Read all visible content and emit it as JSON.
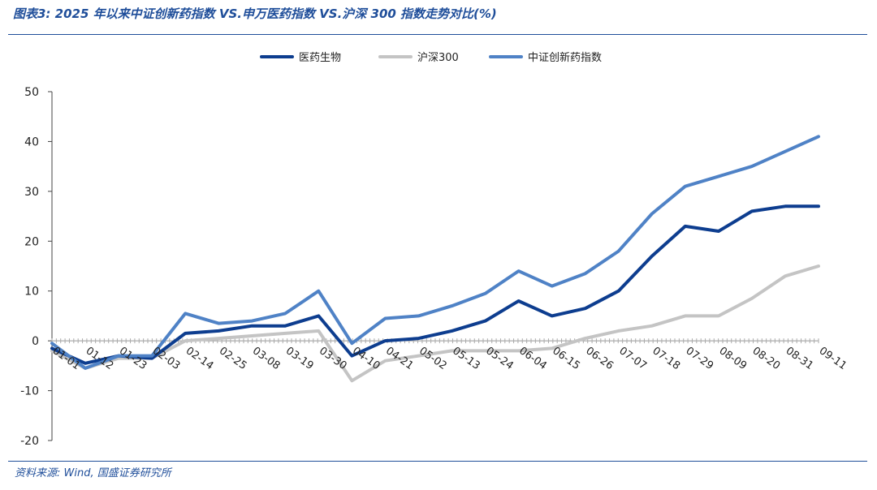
{
  "header": {
    "title": "图表3: 2025 年以来中证创新药指数 VS.申万医药指数 VS.沪深 300 指数走势对比(%)"
  },
  "footer": {
    "source": "资料来源: Wind, 国盛证券研究所"
  },
  "chart_data": {
    "type": "line",
    "title": "图表3: 2025 年以来中证创新药指数 VS.申万医药指数 VS.沪深 300 指数走势对比(%)",
    "xlabel": "",
    "ylabel": "",
    "ylim": [
      -20,
      50
    ],
    "yticks": [
      50,
      40,
      30,
      20,
      10,
      0,
      -10,
      -20
    ],
    "grid": false,
    "legend_position": "top-center",
    "x": [
      "01-01",
      "01-12",
      "01-23",
      "02-03",
      "02-14",
      "02-25",
      "03-08",
      "03-19",
      "03-30",
      "04-10",
      "04-21",
      "05-02",
      "05-13",
      "05-24",
      "06-04",
      "06-15",
      "06-26",
      "07-07",
      "07-18",
      "07-29",
      "08-09",
      "08-20",
      "08-31",
      "09-11"
    ],
    "series": [
      {
        "name": "医药生物",
        "color": "#0d3d8f",
        "values": [
          -1.5,
          -4.5,
          -3.0,
          -3.5,
          1.5,
          2.0,
          3.0,
          3.0,
          5.0,
          -3.0,
          0.0,
          0.5,
          2.0,
          4.0,
          8.0,
          5.0,
          6.5,
          10.0,
          17.0,
          23.0,
          22.0,
          26.0,
          27.0,
          27.0
        ]
      },
      {
        "name": "沪深300",
        "color": "#c4c4c4",
        "values": [
          -2.0,
          -5.5,
          -3.5,
          -3.5,
          0.0,
          0.5,
          1.0,
          1.5,
          2.0,
          -8.0,
          -4.0,
          -3.0,
          -2.0,
          -2.0,
          -2.0,
          -1.5,
          0.5,
          2.0,
          3.0,
          5.0,
          5.0,
          8.5,
          13.0,
          15.0
        ]
      },
      {
        "name": "中证创新药指数",
        "color": "#4f82c6",
        "values": [
          -0.5,
          -5.5,
          -3.0,
          -3.0,
          5.5,
          3.5,
          4.0,
          5.5,
          10.0,
          -0.5,
          4.5,
          5.0,
          7.0,
          9.5,
          14.0,
          11.0,
          13.5,
          18.0,
          25.5,
          31.0,
          33.0,
          35.0,
          38.0,
          41.0
        ]
      }
    ]
  }
}
